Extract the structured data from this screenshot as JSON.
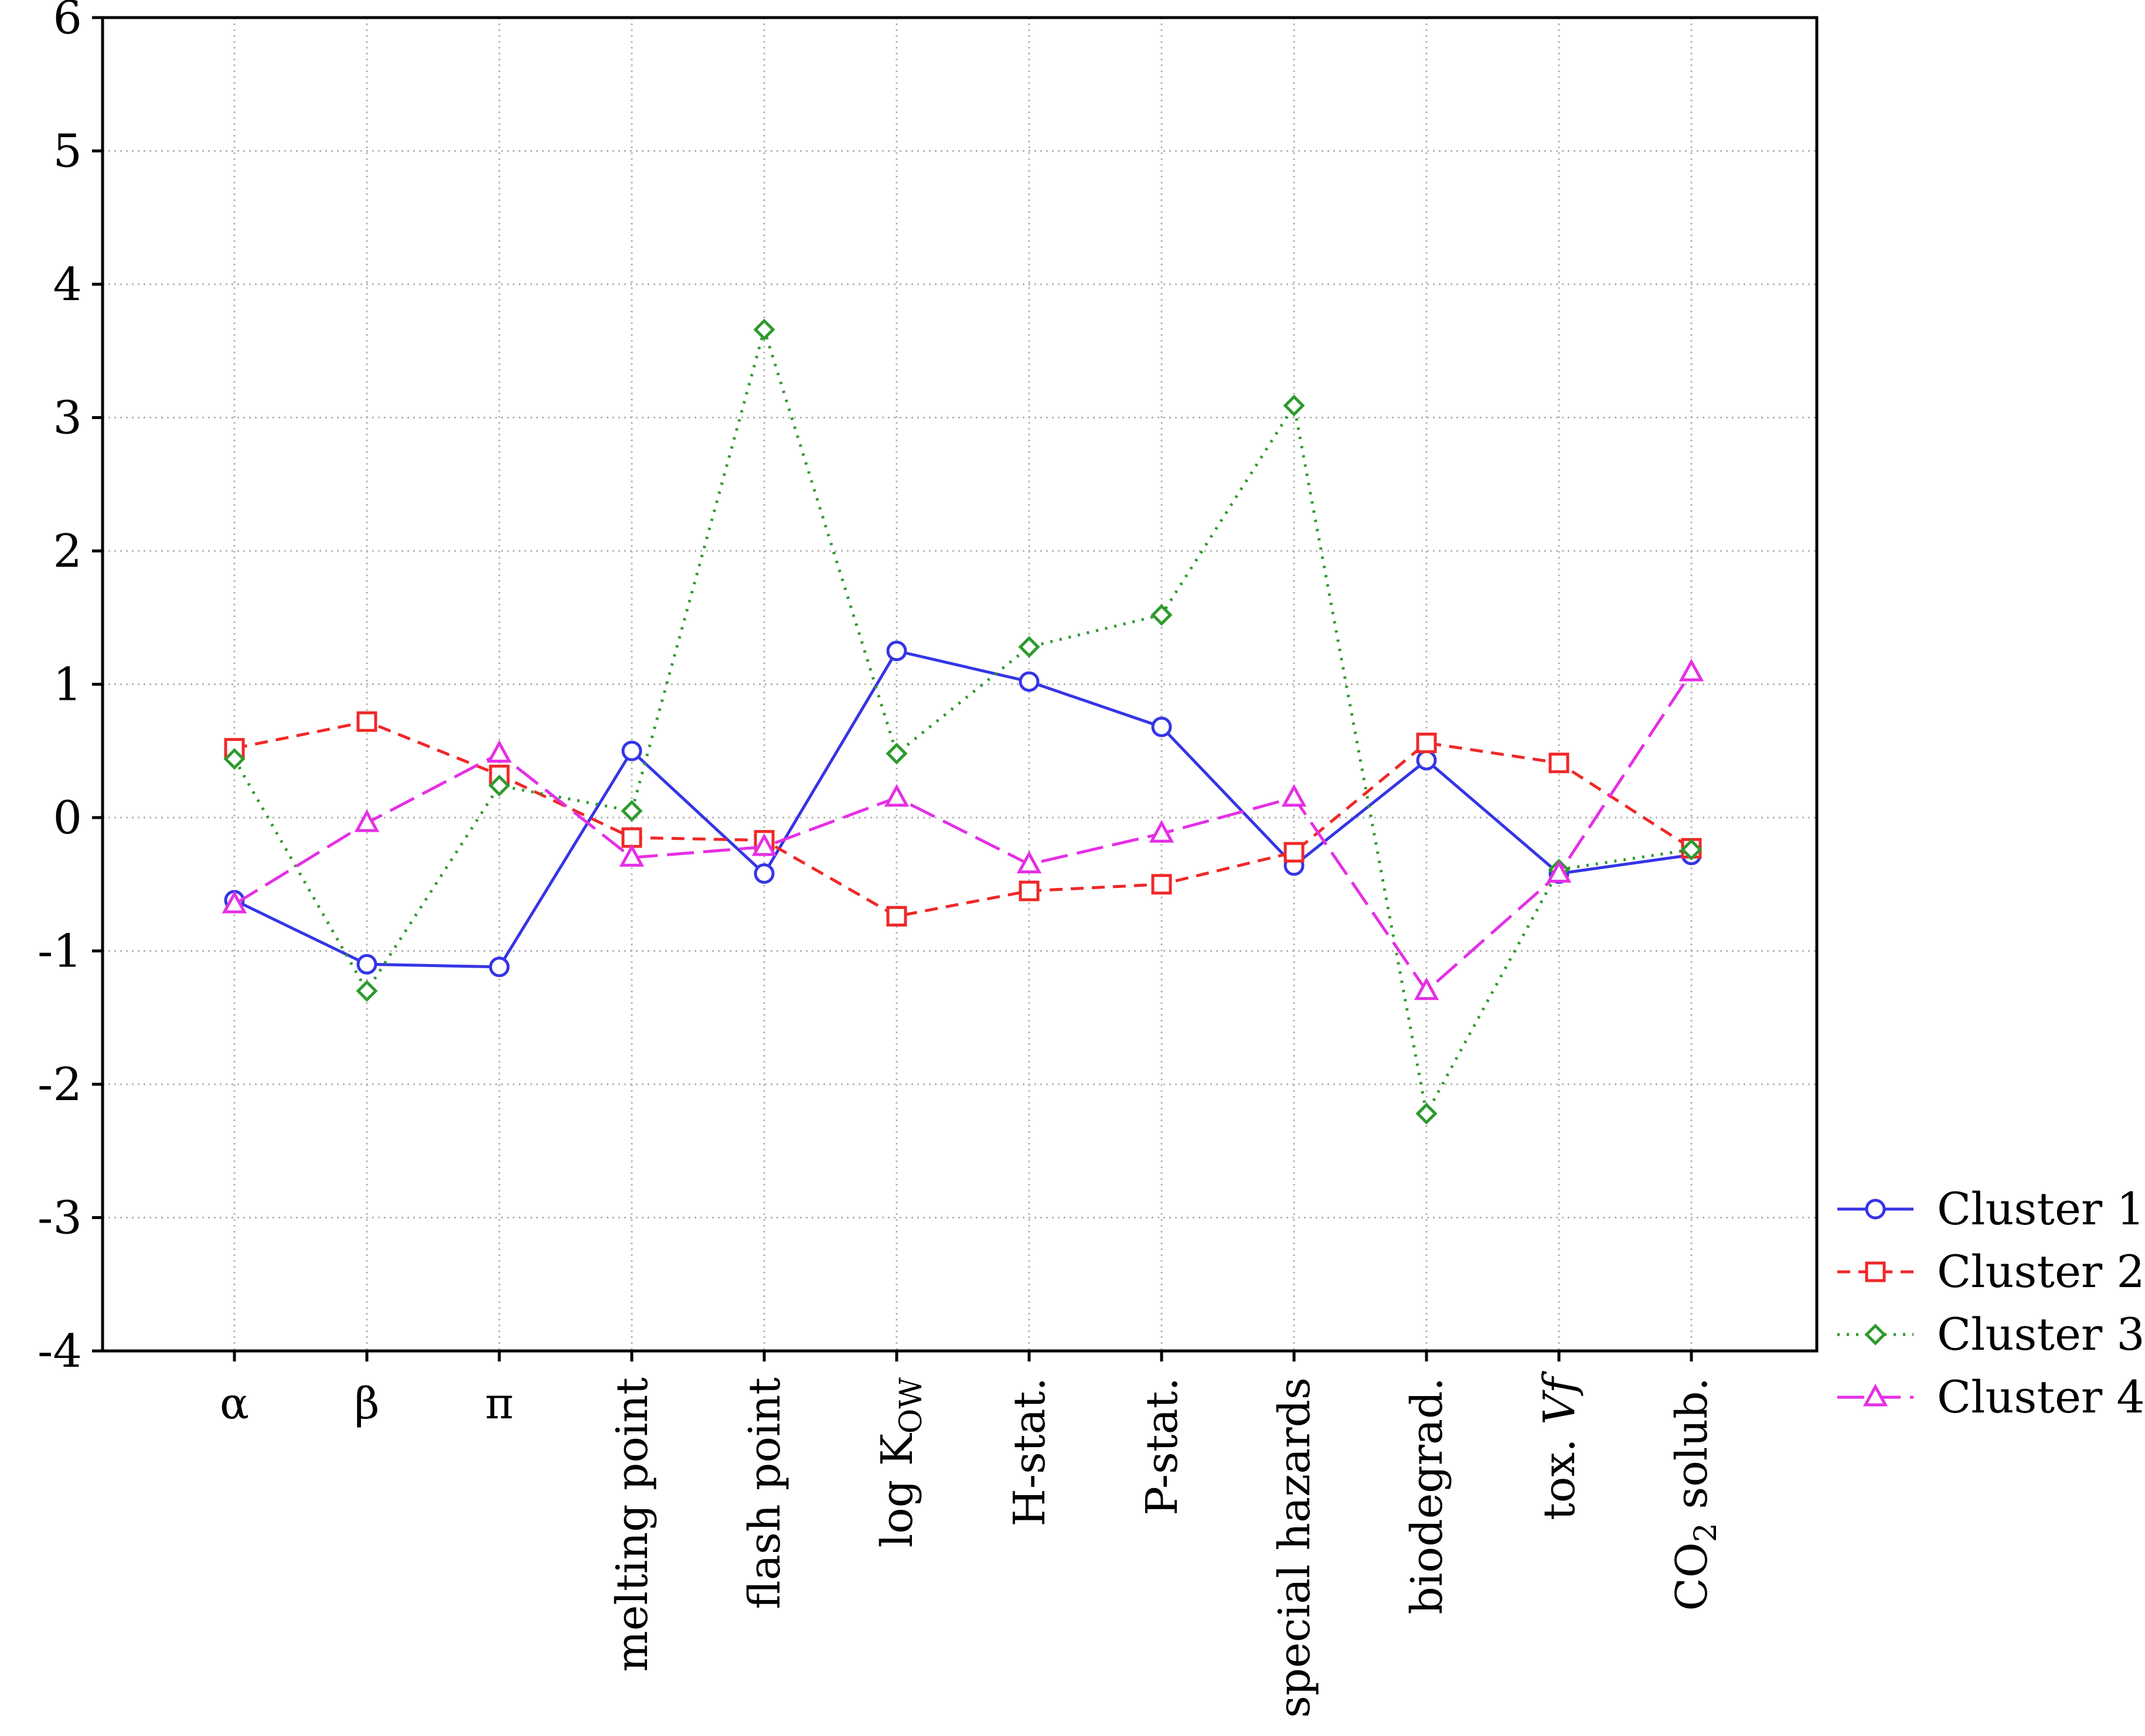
{
  "chart_data": {
    "type": "line",
    "title": "",
    "xlabel": "",
    "ylabel": "",
    "ylim": [
      -4,
      6
    ],
    "yticks": [
      6,
      5,
      4,
      3,
      2,
      1,
      0,
      -1,
      -2,
      -3,
      -4
    ],
    "grid": true,
    "legend_position": "right-bottom",
    "categories": [
      "α",
      "β",
      "π",
      "melting point",
      "flash point",
      "log K_OW",
      "H-stat.",
      "P-stat.",
      "special hazards",
      "biodegrad.",
      "tox. Vf",
      "CO2 solub."
    ],
    "category_labels": [
      {
        "text": "α",
        "rotated": false
      },
      {
        "text": "β",
        "rotated": false
      },
      {
        "text": "π",
        "rotated": false
      },
      {
        "text": "melting point",
        "rotated": true
      },
      {
        "text": "flash point",
        "rotated": true
      },
      {
        "text": "log K",
        "sub": "OW",
        "rotated": true
      },
      {
        "text": "H-stat.",
        "rotated": true
      },
      {
        "text": "P-stat.",
        "rotated": true
      },
      {
        "text": "special hazards",
        "rotated": true
      },
      {
        "text": "biodegrad.",
        "rotated": true
      },
      {
        "text": "tox. ",
        "italic": "Vf",
        "rotated": true
      },
      {
        "text": "CO",
        "sub": "2",
        "after": " solub.",
        "rotated": true
      }
    ],
    "series": [
      {
        "name": "Cluster 1",
        "color": "#3535e6",
        "dash": "",
        "marker": "circle",
        "values": [
          -0.62,
          -1.1,
          -1.12,
          0.5,
          -0.42,
          1.25,
          1.02,
          0.68,
          -0.36,
          0.43,
          -0.42,
          -0.28
        ]
      },
      {
        "name": "Cluster 2",
        "color": "#f02828",
        "dash": "22,14",
        "marker": "square",
        "values": [
          0.52,
          0.72,
          0.32,
          -0.15,
          -0.17,
          -0.74,
          -0.55,
          -0.5,
          -0.26,
          0.56,
          0.41,
          -0.23
        ]
      },
      {
        "name": "Cluster 3",
        "color": "#2e9a2e",
        "dash": "4,12",
        "marker": "diamond",
        "values": [
          0.44,
          -1.3,
          0.24,
          0.05,
          3.66,
          0.48,
          1.28,
          1.52,
          3.09,
          -2.22,
          -0.39,
          -0.24
        ]
      },
      {
        "name": "Cluster 4",
        "color": "#e52fe5",
        "dash": "46,16",
        "marker": "triangle",
        "values": [
          -0.65,
          -0.04,
          0.48,
          -0.3,
          -0.22,
          0.15,
          -0.35,
          -0.12,
          0.15,
          -1.3,
          -0.42,
          1.09
        ]
      }
    ]
  }
}
